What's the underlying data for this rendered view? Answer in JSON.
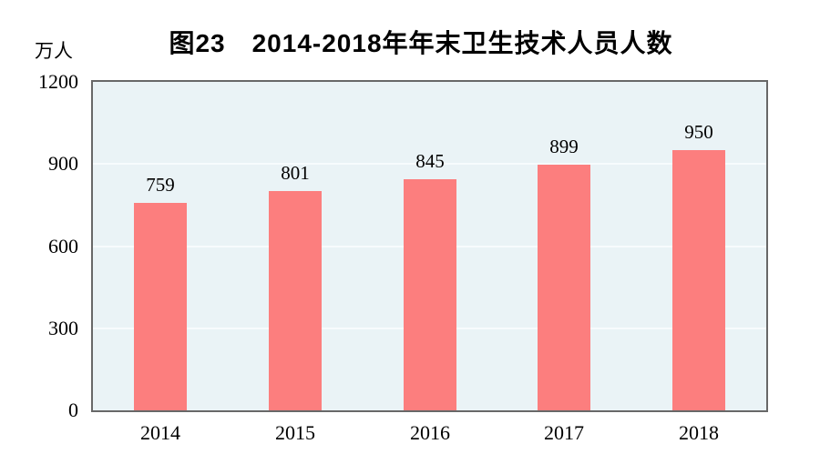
{
  "chart_data": {
    "type": "bar",
    "title": "图23　2014-2018年年末卫生技术人员人数",
    "unit_label": "万人",
    "categories": [
      "2014",
      "2015",
      "2016",
      "2017",
      "2018"
    ],
    "values": [
      759,
      801,
      845,
      899,
      950
    ],
    "data_labels": [
      "759",
      "801",
      "845",
      "899",
      "950"
    ],
    "ylim": [
      0,
      1200
    ],
    "yticks": [
      0,
      300,
      600,
      900,
      1200
    ],
    "grid": "horizontal-light",
    "legend": "none",
    "colors": {
      "bar": "#FC7E7E",
      "plot_background": "#EAF3F6",
      "plot_border": "#686868",
      "gridline": "#F7FBFD",
      "text": "#000000",
      "page_background": "#FFFFFF"
    }
  }
}
